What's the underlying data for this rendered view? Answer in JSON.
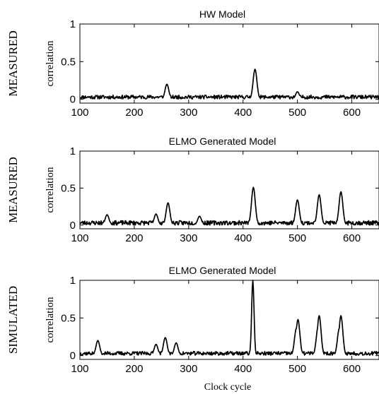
{
  "figure": {
    "xlabel": "Clock cycle"
  },
  "chart_data": [
    {
      "type": "line",
      "title": "HW Model",
      "row_label": "MEASURED",
      "ylabel": "correlation",
      "xlabel": "",
      "xlim": [
        100,
        650
      ],
      "ylim": [
        -0.05,
        1
      ],
      "xticks": [
        "100",
        "200",
        "300",
        "400",
        "500",
        "600"
      ],
      "yticks": [
        "0",
        "0.5",
        "1"
      ],
      "baseline": 0.03,
      "noise": 0.025,
      "seed": 11,
      "peaks": [
        {
          "x": 260,
          "y": 0.2
        },
        {
          "x": 422,
          "y": 0.4
        },
        {
          "x": 500,
          "y": 0.1
        }
      ]
    },
    {
      "type": "line",
      "title": "ELMO Generated Model",
      "row_label": "MEASURED",
      "ylabel": "correlation",
      "xlabel": "",
      "xlim": [
        100,
        650
      ],
      "ylim": [
        -0.05,
        1
      ],
      "xticks": [
        "100",
        "200",
        "300",
        "400",
        "500",
        "600"
      ],
      "yticks": [
        "0",
        "0.5",
        "1"
      ],
      "baseline": 0.03,
      "noise": 0.03,
      "seed": 23,
      "peaks": [
        {
          "x": 150,
          "y": 0.14
        },
        {
          "x": 240,
          "y": 0.15
        },
        {
          "x": 262,
          "y": 0.3
        },
        {
          "x": 320,
          "y": 0.12
        },
        {
          "x": 419,
          "y": 0.51
        },
        {
          "x": 500,
          "y": 0.34
        },
        {
          "x": 540,
          "y": 0.41
        },
        {
          "x": 580,
          "y": 0.45
        }
      ]
    },
    {
      "type": "line",
      "title": "ELMO Generated Model",
      "row_label": "SIMULATED",
      "ylabel": "correlation",
      "xlabel": "Clock cycle",
      "xlim": [
        100,
        650
      ],
      "ylim": [
        -0.05,
        1
      ],
      "xticks": [
        "100",
        "200",
        "300",
        "400",
        "500",
        "600"
      ],
      "yticks": [
        "0",
        "0.5",
        "1"
      ],
      "baseline": 0.03,
      "noise": 0.025,
      "seed": 37,
      "peaks": [
        {
          "x": 133,
          "y": 0.2
        },
        {
          "x": 240,
          "y": 0.15
        },
        {
          "x": 257,
          "y": 0.24
        },
        {
          "x": 277,
          "y": 0.17
        },
        {
          "x": 418,
          "y": 1.0
        },
        {
          "x": 498,
          "y": 0.36
        },
        {
          "x": 501,
          "y": 0.48
        },
        {
          "x": 538,
          "y": 0.38
        },
        {
          "x": 540,
          "y": 0.53
        },
        {
          "x": 577,
          "y": 0.36
        },
        {
          "x": 580,
          "y": 0.53
        }
      ]
    }
  ]
}
